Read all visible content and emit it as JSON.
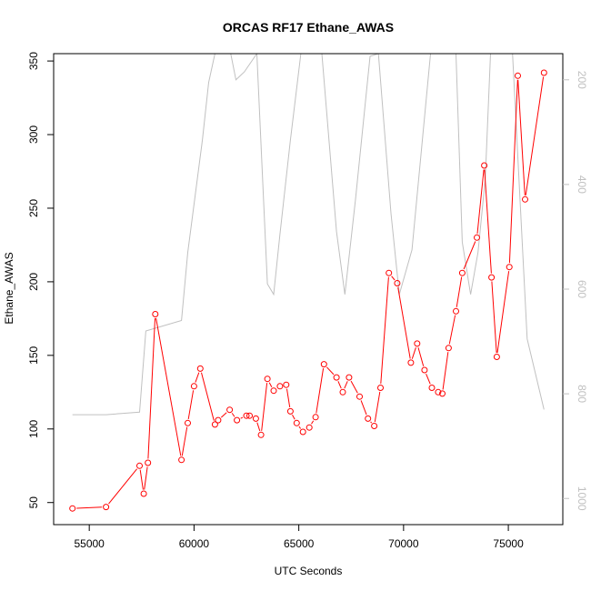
{
  "chart_data": {
    "type": "line",
    "title": "ORCAS RF17 Ethane_AWAS",
    "xlabel": "UTC Seconds",
    "ylabel": "Ethane_AWAS",
    "xlim": [
      53300,
      77600
    ],
    "ylim": [
      35,
      355
    ],
    "x_ticks": [
      55000,
      60000,
      65000,
      70000,
      75000
    ],
    "y_ticks": [
      50,
      100,
      150,
      200,
      250,
      300,
      350
    ],
    "y2_ticks": [
      200,
      400,
      600,
      800,
      1000
    ],
    "y2_lim_reversed": [
      1050,
      150
    ],
    "colors": {
      "series": "#ff0000",
      "secondary": "#c0c0c0"
    },
    "series": [
      {
        "x": [
          54200,
          55800,
          57400,
          57600,
          57800,
          58150,
          59400,
          59700,
          60000,
          60300,
          61000,
          61150,
          61700,
          62050,
          62500,
          62650,
          62950,
          63200,
          63500,
          63800,
          64100,
          64400,
          64600,
          64900,
          65200,
          65500,
          65800,
          66200,
          66800,
          67100,
          67400,
          67900,
          68300,
          68600,
          68900,
          69300,
          69700,
          70350,
          70650,
          71000,
          71350,
          71650,
          71850,
          72150,
          72500,
          72800,
          73500,
          73850,
          74200,
          74450,
          75050,
          75450,
          75800,
          76700
        ],
        "y": [
          46,
          47,
          75,
          56,
          77,
          178,
          79,
          104,
          129,
          141,
          103,
          106,
          113,
          106,
          109,
          109,
          107,
          96,
          134,
          126,
          129,
          130,
          112,
          104,
          98,
          101,
          108,
          144,
          135,
          125,
          135,
          122,
          107,
          102,
          128,
          206,
          199,
          145,
          158,
          140,
          128,
          125,
          124,
          155,
          180,
          206,
          230,
          279,
          203,
          149,
          210,
          340,
          256,
          342
        ]
      },
      {
        "x": [
          54200,
          55800,
          57400,
          57700,
          59400,
          59700,
          60400,
          60700,
          61000,
          61700,
          62000,
          62400,
          63000,
          63500,
          63800,
          64100,
          64600,
          65100,
          66100,
          66800,
          67200,
          67700,
          68400,
          68800,
          69400,
          69800,
          70400,
          71300,
          72500,
          72800,
          73200,
          73550,
          73900,
          74150,
          75200,
          75900,
          76700
        ],
        "y": [
          840,
          840,
          835,
          680,
          660,
          530,
          315,
          205,
          150,
          140,
          200,
          185,
          150,
          590,
          610,
          495,
          315,
          150,
          150,
          490,
          610,
          430,
          155,
          150,
          455,
          610,
          525,
          145,
          150,
          510,
          610,
          530,
          390,
          150,
          150,
          695,
          830
        ]
      }
    ]
  }
}
